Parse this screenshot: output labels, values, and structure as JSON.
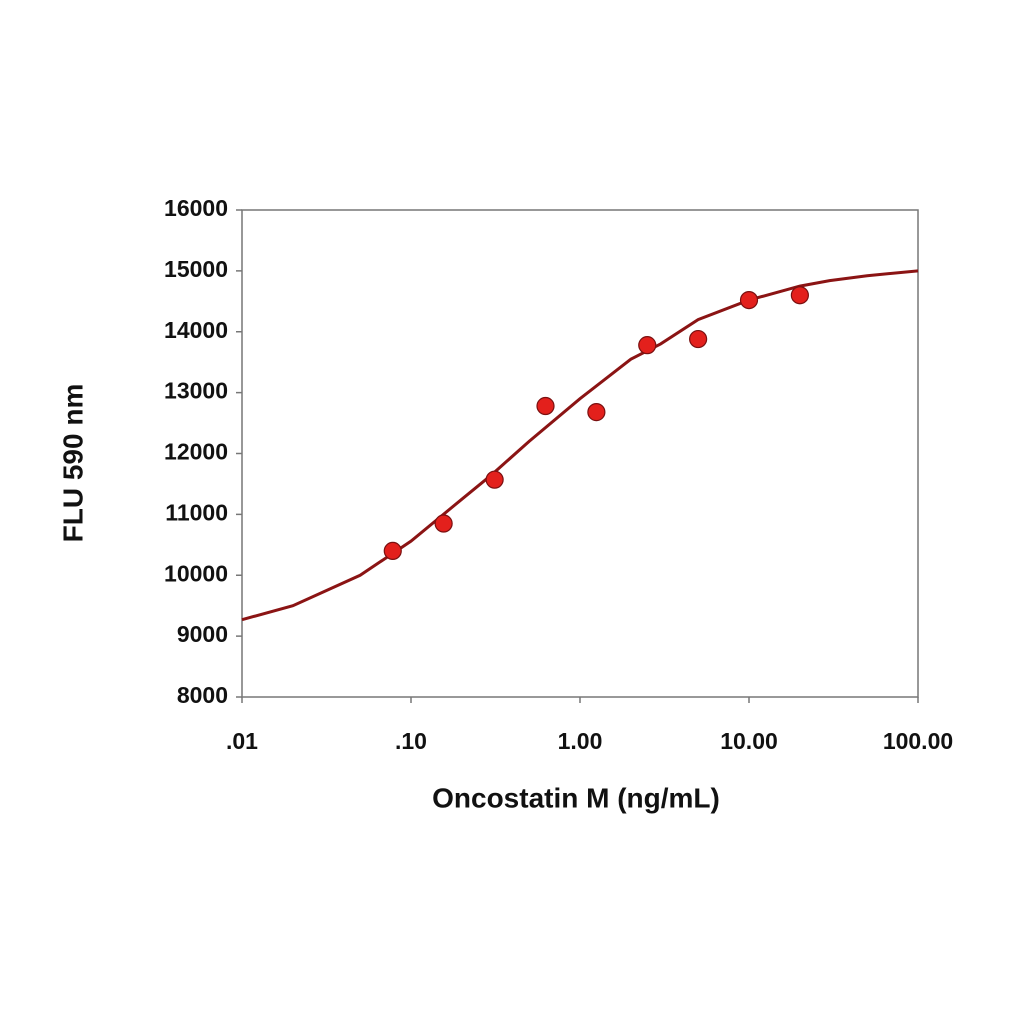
{
  "chart_data": {
    "type": "scatter",
    "x_label": "Oncostatin M (ng/mL)",
    "y_label": "FLU 590 nm",
    "xscale": "log",
    "xlim": [
      0.01,
      100
    ],
    "xticks": [
      {
        "value": 0.01,
        "label": ".01"
      },
      {
        "value": 0.1,
        "label": ".10"
      },
      {
        "value": 1,
        "label": "1.00"
      },
      {
        "value": 10,
        "label": "10.00"
      },
      {
        "value": 100,
        "label": "100.00"
      }
    ],
    "ylim": [
      8000,
      16000
    ],
    "yticks": [
      8000,
      9000,
      10000,
      11000,
      12000,
      13000,
      14000,
      15000,
      16000
    ],
    "grid": false,
    "series": [
      {
        "kind": "points",
        "color": "#e3201c",
        "x": [
          0.078,
          0.156,
          0.3125,
          0.625,
          1.25,
          2.5,
          5,
          10,
          20
        ],
        "values": [
          10400,
          10850,
          11570,
          12780,
          12680,
          13780,
          13880,
          14520,
          14600
        ]
      },
      {
        "kind": "line",
        "color": "#8b1414",
        "x": [
          0.01,
          0.02,
          0.03,
          0.05,
          0.1,
          0.2,
          0.3,
          0.5,
          1,
          2,
          3,
          5,
          10,
          20,
          30,
          50,
          100
        ],
        "values": [
          9270,
          9500,
          9720,
          10000,
          10560,
          11250,
          11650,
          12200,
          12900,
          13550,
          13800,
          14200,
          14520,
          14750,
          14840,
          14920,
          15000
        ]
      }
    ]
  }
}
